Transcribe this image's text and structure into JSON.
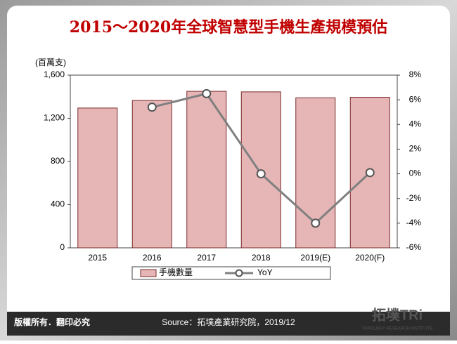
{
  "chart_data": {
    "type": "bar_line",
    "title": "2015～2020年全球智慧型手機生產規模預估",
    "y_unit": "(百萬支)",
    "categories": [
      "2015",
      "2016",
      "2017",
      "2018",
      "2019(E)",
      "2020(F)"
    ],
    "series": [
      {
        "name": "手機數量",
        "type": "bar",
        "color": "#e6b5b5",
        "values": [
          1295,
          1365,
          1450,
          1445,
          1390,
          1395
        ]
      },
      {
        "name": "YoY",
        "type": "line",
        "axis": "y2",
        "color": "#808080",
        "values": [
          null,
          5.4,
          6.5,
          0.0,
          -4.0,
          0.1
        ]
      }
    ],
    "ylim": [
      0,
      1600
    ],
    "yticks": [
      0,
      400,
      800,
      {
        "value": 1200,
        "label": "1,200"
      },
      {
        "value": 1600,
        "label": "1,600"
      }
    ],
    "y2lim": [
      -6,
      8
    ],
    "y2ticks": [
      {
        "value": -6,
        "label": "-6%"
      },
      {
        "value": -4,
        "label": "-4%"
      },
      {
        "value": -2,
        "label": "-2%"
      },
      {
        "value": 0,
        "label": "0%"
      },
      {
        "value": 2,
        "label": "2%"
      },
      {
        "value": 4,
        "label": "4%"
      },
      {
        "value": 6,
        "label": "6%"
      },
      {
        "value": 8,
        "label": "8%"
      }
    ]
  },
  "footer": {
    "copyright": "版權所有．翻印必究",
    "source": "Source：拓墣產業研究院，2019/12"
  },
  "logo": {
    "name": "拓墣TRi",
    "subtitle": "TOPOLOGY RESEARCH INSTITUTE"
  }
}
